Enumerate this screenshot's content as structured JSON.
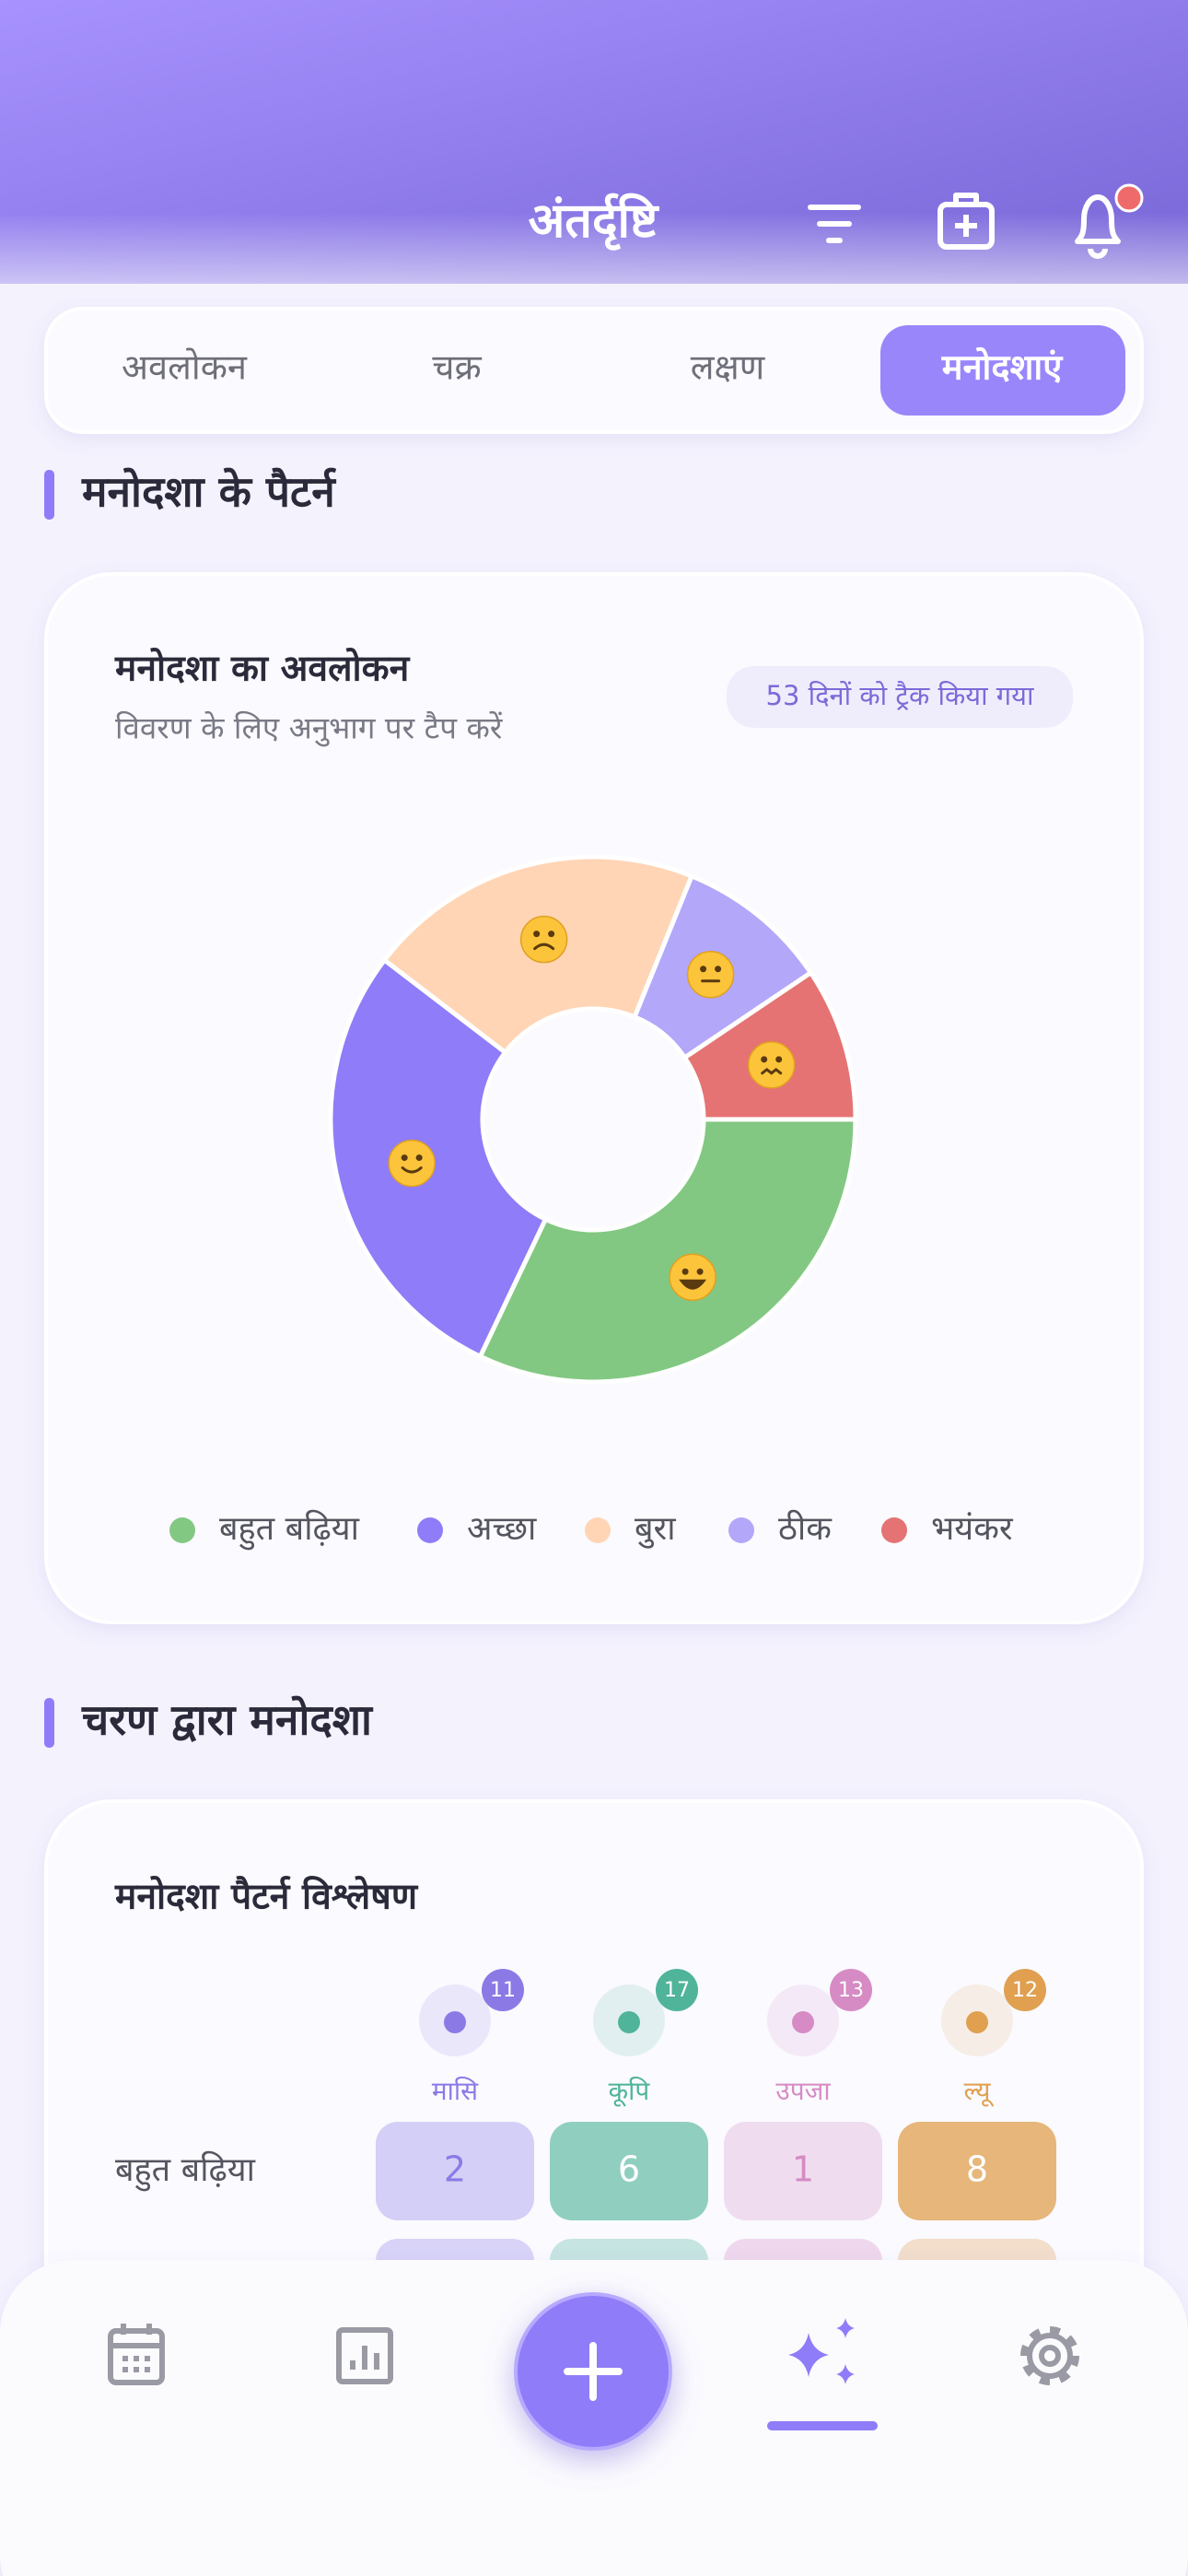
{
  "header": {
    "title": "अंतर्दृष्टि"
  },
  "tabs": [
    "अवलोकन",
    "चक्र",
    "लक्षण",
    "मनोदशाएं"
  ],
  "sections": [
    {
      "title": "मनोदशा के पैटर्न"
    },
    {
      "title": "चरण द्वारा मनोदशा"
    }
  ],
  "chart_data": {
    "type": "donut",
    "title": "मनोदशा का अवलोकन",
    "subtitle": "विवरण के लिए अनुभाग पर टैप करें",
    "badge": "53 दिनों को ट्रैक किया गया",
    "categories": [
      "बहुत बढ़िया",
      "अच्छा",
      "बुरा",
      "ठीक",
      "भयंकर"
    ],
    "values": [
      17,
      15,
      11,
      5,
      5
    ],
    "colors": [
      "#82c882",
      "#8f7cf8",
      "#ffd5b5",
      "#b3a7fa",
      "#e57373"
    ]
  },
  "phase_table": {
    "title": "मनोदशा पैटर्न विश्लेषण",
    "phases": [
      {
        "name": "मासि",
        "count": 11,
        "color": "#8b7ae6"
      },
      {
        "name": "कूपि",
        "count": 17,
        "color": "#4fb49a"
      },
      {
        "name": "उपजा",
        "count": 13,
        "color": "#d68bc4"
      },
      {
        "name": "ल्यू",
        "count": 12,
        "color": "#e0a050"
      }
    ],
    "rows": [
      {
        "label": "बहुत बढ़िया",
        "values": [
          2,
          6,
          1,
          8
        ]
      }
    ]
  }
}
